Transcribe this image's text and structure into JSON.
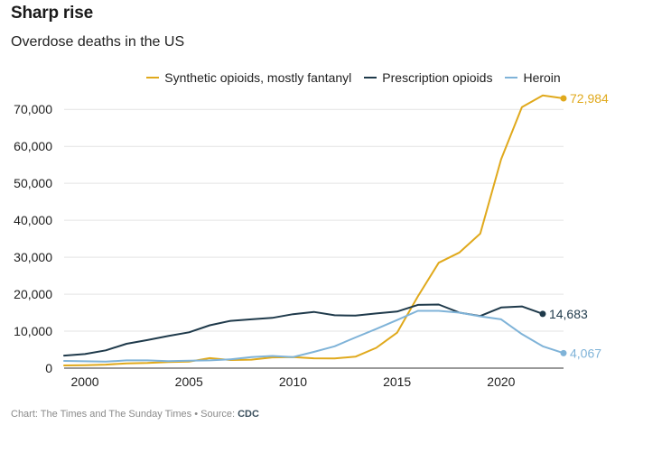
{
  "title": "Sharp rise",
  "subtitle": "Overdose deaths in the US",
  "footer": {
    "credit": "Chart: The Times and The Sunday Times",
    "separator": "•",
    "source_label": "Source:",
    "source": "CDC"
  },
  "chart_data": {
    "type": "line",
    "title": "Sharp rise",
    "subtitle": "Overdose deaths in the US",
    "xlabel": "",
    "ylabel": "",
    "xlim": [
      1999,
      2023
    ],
    "ylim": [
      0,
      72984
    ],
    "x_ticks": [
      2000,
      2005,
      2010,
      2015,
      2020
    ],
    "y_ticks": [
      0,
      10000,
      20000,
      30000,
      40000,
      50000,
      60000,
      70000
    ],
    "y_tick_labels": [
      "0",
      "10,000",
      "20,000",
      "30,000",
      "40,000",
      "50,000",
      "60,000",
      "70,000"
    ],
    "grid": "horizontal",
    "legend_position": "top",
    "series": [
      {
        "name": "Synthetic opioids, mostly fantanyl",
        "color": "#e0a91c",
        "x": [
          1999,
          2000,
          2001,
          2002,
          2003,
          2004,
          2005,
          2006,
          2007,
          2008,
          2009,
          2010,
          2011,
          2012,
          2013,
          2014,
          2015,
          2016,
          2017,
          2018,
          2019,
          2020,
          2021,
          2022,
          2023
        ],
        "values": [
          730,
          780,
          950,
          1300,
          1400,
          1650,
          1750,
          2700,
          2200,
          2300,
          2900,
          3000,
          2650,
          2600,
          3100,
          5500,
          9600,
          19400,
          28500,
          31300,
          36400,
          56500,
          70600,
          73800,
          72984
        ],
        "end_label": "72,984"
      },
      {
        "name": "Prescription opioids",
        "color": "#1f3a4b",
        "x": [
          1999,
          2000,
          2001,
          2002,
          2003,
          2004,
          2005,
          2006,
          2007,
          2008,
          2009,
          2010,
          2011,
          2012,
          2013,
          2014,
          2015,
          2016,
          2017,
          2018,
          2019,
          2020,
          2021,
          2022
        ],
        "values": [
          3400,
          3800,
          4800,
          6600,
          7600,
          8700,
          9700,
          11600,
          12800,
          13200,
          13600,
          14600,
          15200,
          14300,
          14200,
          14800,
          15300,
          17100,
          17200,
          15000,
          14100,
          16400,
          16700,
          14683
        ],
        "end_label": "14,683"
      },
      {
        "name": "Heroin",
        "color": "#7fb3d8",
        "x": [
          1999,
          2000,
          2001,
          2002,
          2003,
          2004,
          2005,
          2006,
          2007,
          2008,
          2009,
          2010,
          2011,
          2012,
          2013,
          2014,
          2015,
          2016,
          2017,
          2018,
          2019,
          2020,
          2021,
          2022,
          2023
        ],
        "values": [
          1950,
          1850,
          1750,
          2100,
          2100,
          1900,
          2000,
          2100,
          2400,
          3000,
          3300,
          3000,
          4400,
          5900,
          8300,
          10600,
          13000,
          15500,
          15500,
          15000,
          14000,
          13200,
          9200,
          5900,
          4067
        ],
        "end_label": "4,067"
      }
    ]
  }
}
